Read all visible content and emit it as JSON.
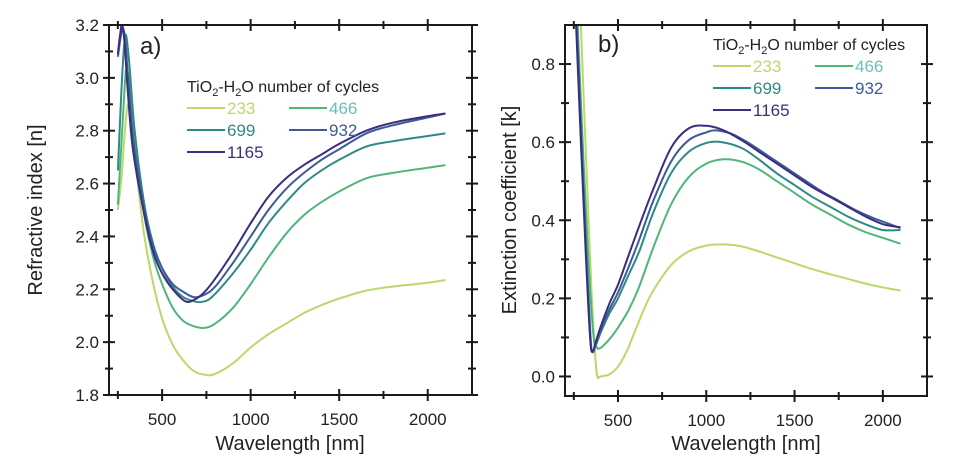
{
  "chart_data": [
    {
      "type": "line",
      "panel_label": "a)",
      "title": "",
      "xlabel": "Wavelength [nm]",
      "ylabel": "Refractive index [n]",
      "xlim": [
        200,
        2250
      ],
      "ylim": [
        1.8,
        3.2
      ],
      "xticks": [
        500,
        1000,
        1500,
        2000
      ],
      "xticks_minor": [
        250,
        750,
        1250,
        1750
      ],
      "yticks": [
        1.8,
        2.0,
        2.2,
        2.4,
        2.6,
        2.8,
        3.0,
        3.2
      ],
      "ytick_labels": [
        "1.8",
        "2.0",
        "2.2",
        "2.4",
        "2.6",
        "2.8",
        "3.0",
        "3.2"
      ],
      "yticks_minor": [
        1.9,
        2.1,
        2.3,
        2.5,
        2.7,
        2.9,
        3.1
      ],
      "grid": false,
      "legend": {
        "title": "TiO2-H2O number of cycles",
        "title_parts": [
          "TiO",
          "2",
          "-H",
          "2",
          "O number of cycles"
        ],
        "placement": "top-right"
      },
      "series": [
        {
          "name": "233",
          "color": "#b9d96a",
          "label_color": "#b9d96a",
          "x": [
            250,
            270,
            290,
            308,
            330,
            360,
            400,
            450,
            500,
            560,
            620,
            680,
            745,
            800,
            900,
            1000,
            1100,
            1200,
            1300,
            1400,
            1500,
            1653,
            1800,
            2000,
            2100
          ],
          "y": [
            2.5,
            2.62,
            2.8,
            2.9,
            2.82,
            2.62,
            2.4,
            2.22,
            2.09,
            1.99,
            1.93,
            1.89,
            1.876,
            1.88,
            1.92,
            1.98,
            2.03,
            2.07,
            2.11,
            2.14,
            2.165,
            2.195,
            2.21,
            2.225,
            2.235
          ]
        },
        {
          "name": "466",
          "color": "#4fb57a",
          "label_color": "#6cc0b2",
          "x": [
            250,
            270,
            290,
            300,
            320,
            350,
            400,
            450,
            500,
            560,
            620,
            680,
            740,
            800,
            900,
            1000,
            1100,
            1200,
            1300,
            1400,
            1500,
            1653,
            1800,
            2000,
            2100
          ],
          "y": [
            2.52,
            2.75,
            2.98,
            3.03,
            2.96,
            2.74,
            2.48,
            2.32,
            2.22,
            2.13,
            2.08,
            2.06,
            2.054,
            2.07,
            2.13,
            2.22,
            2.32,
            2.41,
            2.48,
            2.53,
            2.57,
            2.62,
            2.64,
            2.66,
            2.67
          ]
        },
        {
          "name": "699",
          "color": "#2e8a86",
          "label_color": "#2e8a86",
          "x": [
            250,
            270,
            285,
            297,
            315,
            345,
            400,
            450,
            500,
            560,
            620,
            680,
            720,
            780,
            900,
            1000,
            1100,
            1200,
            1300,
            1400,
            1500,
            1653,
            1800,
            2000,
            2100
          ],
          "y": [
            2.65,
            2.95,
            3.12,
            3.16,
            3.05,
            2.8,
            2.52,
            2.37,
            2.28,
            2.21,
            2.17,
            2.155,
            2.152,
            2.17,
            2.26,
            2.35,
            2.45,
            2.53,
            2.6,
            2.65,
            2.69,
            2.74,
            2.76,
            2.78,
            2.79
          ]
        },
        {
          "name": "932",
          "color": "#3d5b98",
          "label_color": "#3d5b98",
          "x": [
            250,
            265,
            278,
            292,
            310,
            340,
            400,
            450,
            500,
            560,
            620,
            680,
            740,
            800,
            900,
            1000,
            1100,
            1200,
            1300,
            1400,
            1500,
            1653,
            1800,
            2000,
            2100
          ],
          "y": [
            3.08,
            3.15,
            3.19,
            3.14,
            2.98,
            2.75,
            2.5,
            2.36,
            2.28,
            2.22,
            2.19,
            2.17,
            2.18,
            2.21,
            2.3,
            2.4,
            2.5,
            2.58,
            2.64,
            2.69,
            2.73,
            2.79,
            2.82,
            2.85,
            2.865
          ]
        },
        {
          "name": "1165",
          "color": "#3b2e80",
          "label_color": "#3b2e80",
          "x": [
            250,
            262,
            274,
            288,
            305,
            335,
            400,
            450,
            500,
            560,
            630,
            680,
            740,
            800,
            900,
            1000,
            1100,
            1200,
            1300,
            1400,
            1500,
            1653,
            1800,
            2000,
            2100
          ],
          "y": [
            3.09,
            3.16,
            3.2,
            3.13,
            2.96,
            2.73,
            2.48,
            2.34,
            2.26,
            2.2,
            2.155,
            2.16,
            2.19,
            2.24,
            2.34,
            2.45,
            2.55,
            2.62,
            2.67,
            2.71,
            2.75,
            2.8,
            2.83,
            2.855,
            2.865
          ]
        }
      ]
    },
    {
      "type": "line",
      "panel_label": "b)",
      "title": "",
      "xlabel": "Wavelength [nm]",
      "ylabel": "Extinction coefficient [k]",
      "xlim": [
        200,
        2250
      ],
      "ylim": [
        -0.05,
        0.9
      ],
      "xticks": [
        500,
        1000,
        1500,
        2000
      ],
      "xticks_minor": [
        250,
        750,
        1250,
        1750
      ],
      "yticks": [
        0.0,
        0.2,
        0.4,
        0.6,
        0.8
      ],
      "ytick_labels": [
        "0.0",
        "0.2",
        "0.4",
        "0.6",
        "0.8"
      ],
      "yticks_minor": [
        0.1,
        0.3,
        0.5,
        0.7
      ],
      "grid": false,
      "legend": {
        "title": "TiO2-H2O number of cycles",
        "title_parts": [
          "TiO",
          "2",
          "-H",
          "2",
          "O number of cycles"
        ],
        "placement": "top-right"
      },
      "series": [
        {
          "name": "233",
          "color": "#b9d96a",
          "label_color": "#b9d96a",
          "x": [
            290,
            320,
            350,
            370,
            383,
            400,
            450,
            500,
            550,
            600,
            650,
            700,
            800,
            900,
            1000,
            1110,
            1200,
            1300,
            1400,
            1500,
            1600,
            1700,
            1800,
            1900,
            2000,
            2100
          ],
          "y": [
            0.9,
            0.55,
            0.22,
            0.06,
            0.0,
            0.0,
            0.005,
            0.025,
            0.065,
            0.12,
            0.175,
            0.22,
            0.285,
            0.32,
            0.335,
            0.338,
            0.333,
            0.32,
            0.305,
            0.29,
            0.275,
            0.262,
            0.25,
            0.238,
            0.228,
            0.22
          ]
        },
        {
          "name": "466",
          "color": "#4fb57a",
          "label_color": "#6cc0b2",
          "x": [
            272,
            300,
            330,
            360,
            380,
            395,
            420,
            460,
            500,
            560,
            620,
            700,
            800,
            900,
            1000,
            1100,
            1200,
            1300,
            1400,
            1500,
            1600,
            1700,
            1800,
            1900,
            2000,
            2100
          ],
          "y": [
            0.9,
            0.6,
            0.32,
            0.11,
            0.075,
            0.072,
            0.08,
            0.1,
            0.125,
            0.17,
            0.23,
            0.33,
            0.44,
            0.51,
            0.545,
            0.556,
            0.55,
            0.53,
            0.5,
            0.47,
            0.44,
            0.415,
            0.39,
            0.37,
            0.355,
            0.34
          ]
        },
        {
          "name": "699",
          "color": "#2e8a86",
          "label_color": "#2e8a86",
          "x": [
            268,
            295,
            320,
            345,
            356,
            375,
            400,
            450,
            500,
            560,
            620,
            700,
            800,
            900,
            1000,
            1090,
            1200,
            1300,
            1400,
            1500,
            1600,
            1700,
            1800,
            1900,
            2000,
            2100
          ],
          "y": [
            0.9,
            0.6,
            0.33,
            0.1,
            0.064,
            0.08,
            0.11,
            0.16,
            0.2,
            0.26,
            0.32,
            0.42,
            0.52,
            0.575,
            0.598,
            0.6,
            0.585,
            0.555,
            0.52,
            0.49,
            0.46,
            0.435,
            0.41,
            0.39,
            0.375,
            0.375
          ]
        },
        {
          "name": "932",
          "color": "#3d5b98",
          "label_color": "#3d5b98",
          "x": [
            265,
            292,
            318,
            343,
            356,
            375,
            400,
            450,
            500,
            560,
            620,
            700,
            800,
            900,
            1000,
            1057,
            1150,
            1250,
            1350,
            1450,
            1550,
            1650,
            1750,
            1850,
            1950,
            2100
          ],
          "y": [
            0.9,
            0.6,
            0.33,
            0.1,
            0.062,
            0.085,
            0.115,
            0.17,
            0.215,
            0.28,
            0.35,
            0.45,
            0.55,
            0.605,
            0.625,
            0.63,
            0.62,
            0.595,
            0.565,
            0.535,
            0.505,
            0.475,
            0.45,
            0.425,
            0.405,
            0.38
          ]
        },
        {
          "name": "1165",
          "color": "#3b2e80",
          "label_color": "#3b2e80",
          "x": [
            263,
            290,
            316,
            342,
            356,
            375,
            400,
            450,
            500,
            560,
            620,
            700,
            800,
            900,
            1000,
            1100,
            1200,
            1300,
            1400,
            1500,
            1600,
            1700,
            1800,
            1900,
            2000,
            2100
          ],
          "y": [
            0.9,
            0.6,
            0.33,
            0.1,
            0.064,
            0.09,
            0.125,
            0.185,
            0.235,
            0.31,
            0.385,
            0.48,
            0.585,
            0.635,
            0.642,
            0.63,
            0.605,
            0.575,
            0.545,
            0.515,
            0.485,
            0.46,
            0.435,
            0.41,
            0.39,
            0.382
          ]
        }
      ]
    }
  ]
}
